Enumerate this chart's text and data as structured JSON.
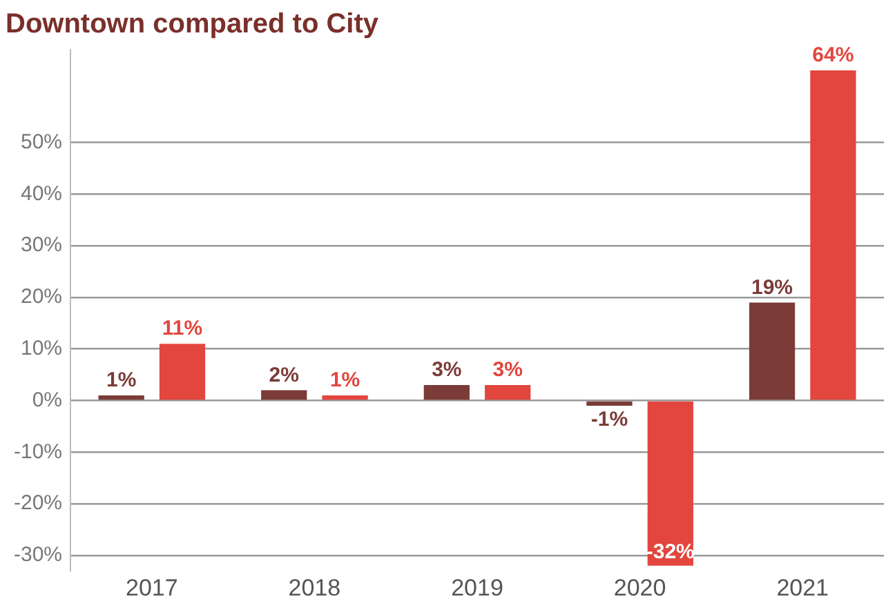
{
  "chart_data": {
    "type": "bar",
    "title": "Downtown compared to City",
    "categories": [
      "2017",
      "2018",
      "2019",
      "2020",
      "2021"
    ],
    "series": [
      {
        "color": "#7b3b37",
        "values": [
          1,
          2,
          3,
          -1,
          19
        ],
        "value_labels": [
          "1%",
          "2%",
          "3%",
          "-1%",
          "19%"
        ]
      },
      {
        "color": "#e2463e",
        "values": [
          11,
          1,
          3,
          -32,
          64
        ],
        "value_labels": [
          "11%",
          "1%",
          "3%",
          "-32%",
          "64%"
        ]
      }
    ],
    "ylim": [
      -33,
      68
    ],
    "yticks": [
      {
        "value": -30,
        "label": "-30%"
      },
      {
        "value": -20,
        "label": "-20%"
      },
      {
        "value": -10,
        "label": "-10%"
      },
      {
        "value": 0,
        "label": "0%"
      },
      {
        "value": 10,
        "label": "10%"
      },
      {
        "value": 20,
        "label": "20%"
      },
      {
        "value": 30,
        "label": "30%"
      },
      {
        "value": 40,
        "label": "40%"
      },
      {
        "value": 50,
        "label": "50%"
      }
    ],
    "grid": "y"
  }
}
